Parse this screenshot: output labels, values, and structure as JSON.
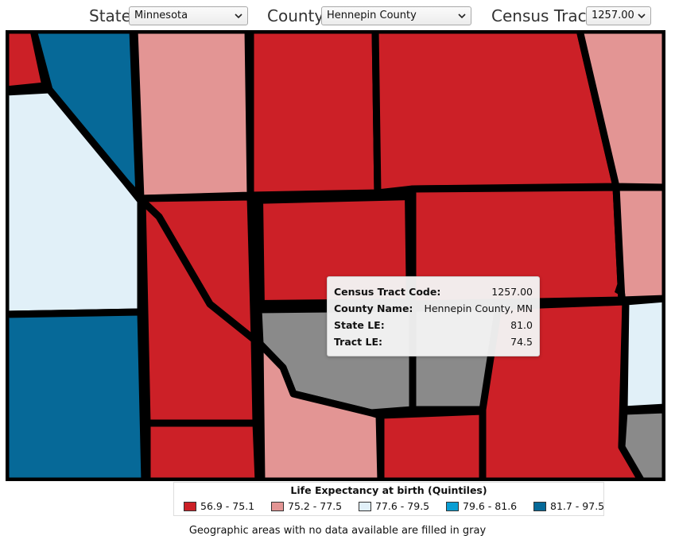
{
  "controls": {
    "state_label": "State",
    "state_value": "Minnesota",
    "county_label": "County",
    "county_value": "Hennepin County",
    "tract_label": "Census Tract",
    "tract_value": "1257.00"
  },
  "tooltip": {
    "rows": [
      {
        "key": "Census Tract Code:",
        "value": "1257.00"
      },
      {
        "key": "County Name:",
        "value": "Hennepin County, MN"
      },
      {
        "key": "State LE:",
        "value": "81.0"
      },
      {
        "key": "Tract LE:",
        "value": "74.5"
      }
    ]
  },
  "legend": {
    "title": "Life Expectancy at birth (Quintiles)",
    "items": [
      {
        "label": "56.9 - 75.1",
        "color": "#cc2027"
      },
      {
        "label": "75.2 - 77.5",
        "color": "#e39594"
      },
      {
        "label": "77.6 - 79.5",
        "color": "#e1f0f8"
      },
      {
        "label": "79.6 - 81.6",
        "color": "#0a9ed3"
      },
      {
        "label": "81.7 - 97.5",
        "color": "#066998"
      }
    ],
    "no_data_color": "#8a8a8a"
  },
  "footnote": "Geographic areas with no data available are filled in gray"
}
